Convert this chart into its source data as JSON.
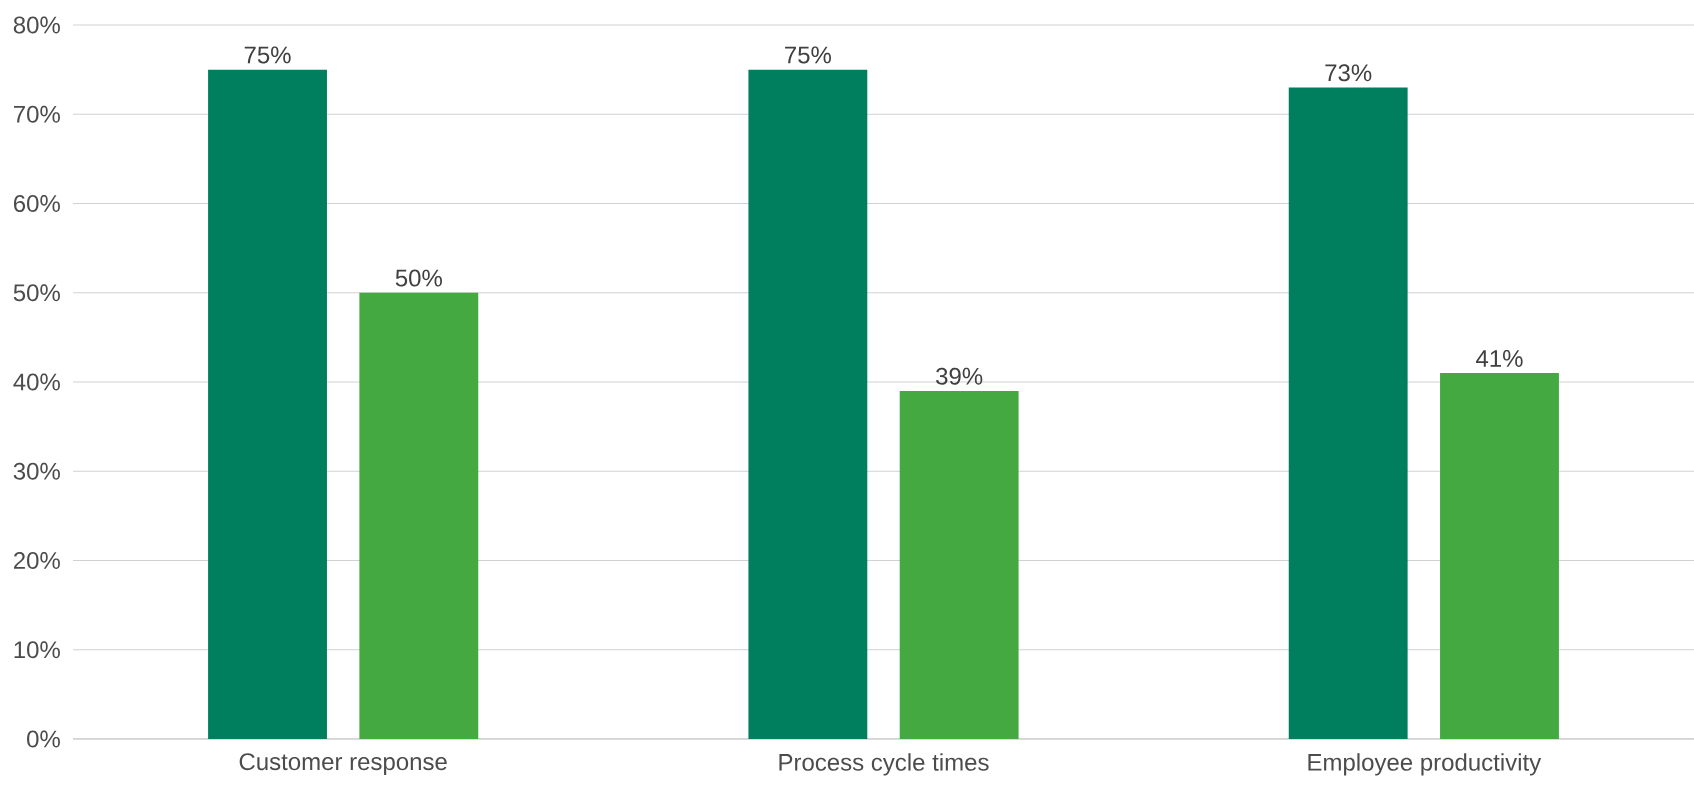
{
  "chart_data": {
    "type": "bar",
    "categories": [
      "Customer response",
      "Process cycle times",
      "Employee productivity"
    ],
    "series": [
      {
        "color": "#007f5f",
        "values": [
          75,
          75,
          73
        ],
        "value_labels": [
          "75%",
          "75%",
          "73%"
        ]
      },
      {
        "color": "#43a940",
        "values": [
          50,
          39,
          41
        ],
        "value_labels": [
          "50%",
          "39%",
          "41%"
        ]
      }
    ],
    "ylim": [
      0,
      80
    ],
    "yticks": [
      {
        "value": 0,
        "label": "0%"
      },
      {
        "value": 10,
        "label": "10%"
      },
      {
        "value": 20,
        "label": "20%"
      },
      {
        "value": 30,
        "label": "30%"
      },
      {
        "value": 40,
        "label": "40%"
      },
      {
        "value": 50,
        "label": "50%"
      },
      {
        "value": 60,
        "label": "60%"
      },
      {
        "value": 70,
        "label": "70%"
      },
      {
        "value": 80,
        "label": "80%"
      }
    ],
    "grid": "y"
  }
}
